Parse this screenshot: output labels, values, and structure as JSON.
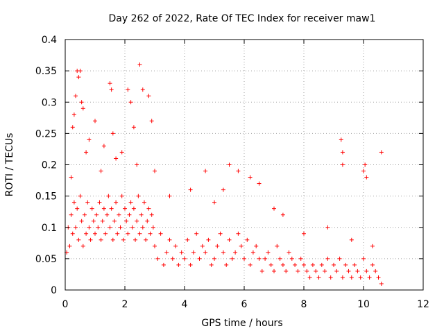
{
  "chart_data": {
    "type": "scatter",
    "title": "Day 262 of 2022, Rate Of TEC Index for receiver maw1",
    "xlabel": "GPS time / hours",
    "ylabel": "ROTI / TECUs",
    "xlim": [
      0,
      12
    ],
    "ylim": [
      0,
      0.4
    ],
    "x_ticks": [
      "0",
      "2",
      "4",
      "6",
      "8",
      "10",
      "12"
    ],
    "y_ticks": [
      "0",
      "0.05",
      "0.1",
      "0.15",
      "0.2",
      "0.25",
      "0.3",
      "0.35",
      "0.4"
    ],
    "grid": true,
    "marker": "plus",
    "color": "#ff0000",
    "series": [
      {
        "x": [
          0.05,
          0.1,
          0.15,
          0.2,
          0.25,
          0.3,
          0.35,
          0.4,
          0.45,
          0.5,
          0.55,
          0.6,
          0.65,
          0.7,
          0.75,
          0.8,
          0.85,
          0.9,
          0.95,
          1.0,
          1.05,
          1.1,
          1.15,
          1.2,
          1.25,
          1.3,
          1.35,
          1.4,
          1.45,
          1.5,
          1.55,
          1.6,
          1.65,
          1.7,
          1.75,
          1.8,
          1.85,
          1.9,
          1.95,
          2.0,
          2.05,
          2.1,
          2.15,
          2.2,
          2.25,
          2.3,
          2.35,
          2.4,
          2.45,
          2.5,
          2.55,
          2.6,
          2.65,
          2.7,
          2.75,
          2.8,
          2.85,
          2.9,
          2.95,
          3.0,
          3.1,
          3.2,
          3.3,
          3.4,
          3.5,
          3.6,
          3.7,
          3.8,
          3.9,
          4.0,
          4.1,
          4.2,
          4.3,
          4.4,
          4.5,
          4.6,
          4.7,
          4.8,
          4.9,
          5.0,
          5.1,
          5.2,
          5.3,
          5.4,
          5.5,
          5.6,
          5.7,
          5.8,
          5.9,
          6.0,
          6.1,
          6.2,
          6.3,
          6.4,
          6.5,
          6.6,
          6.7,
          6.8,
          6.9,
          7.0,
          7.1,
          7.2,
          7.3,
          7.4,
          7.5,
          7.6,
          7.7,
          7.8,
          7.9,
          8.0,
          8.1,
          8.2,
          8.3,
          8.4,
          8.5,
          8.6,
          8.7,
          8.8,
          8.9,
          9.0,
          9.1,
          9.2,
          9.3,
          9.4,
          9.5,
          9.6,
          9.7,
          9.8,
          9.9,
          10.0,
          10.1,
          10.2,
          10.3,
          10.4,
          10.5,
          10.6,
          0.4,
          0.45,
          0.5,
          0.35,
          0.55,
          1.5,
          1.55,
          2.1,
          2.2,
          2.5,
          2.6,
          2.8,
          0.3,
          0.25,
          0.6,
          0.8,
          1.0,
          1.3,
          1.6,
          1.9,
          2.3,
          2.9,
          9.25,
          9.3,
          10.0,
          10.05,
          10.1,
          10.6,
          9.3,
          5.5,
          5.8,
          6.2,
          4.7,
          7.0,
          0.2,
          0.7,
          1.2,
          1.7,
          2.4,
          3.0,
          3.5,
          4.2,
          5.0,
          5.3,
          6.5,
          7.3,
          8.0,
          8.8,
          9.6,
          10.3
        ],
        "y": [
          0.06,
          0.1,
          0.07,
          0.12,
          0.09,
          0.14,
          0.1,
          0.13,
          0.08,
          0.15,
          0.11,
          0.07,
          0.12,
          0.09,
          0.14,
          0.1,
          0.08,
          0.13,
          0.11,
          0.09,
          0.12,
          0.1,
          0.14,
          0.08,
          0.11,
          0.13,
          0.09,
          0.12,
          0.15,
          0.1,
          0.13,
          0.08,
          0.11,
          0.14,
          0.09,
          0.12,
          0.1,
          0.15,
          0.08,
          0.13,
          0.11,
          0.09,
          0.12,
          0.14,
          0.1,
          0.13,
          0.08,
          0.11,
          0.15,
          0.09,
          0.12,
          0.1,
          0.14,
          0.08,
          0.11,
          0.13,
          0.09,
          0.12,
          0.1,
          0.07,
          0.05,
          0.09,
          0.04,
          0.06,
          0.08,
          0.05,
          0.07,
          0.04,
          0.06,
          0.05,
          0.08,
          0.04,
          0.06,
          0.09,
          0.05,
          0.07,
          0.06,
          0.08,
          0.04,
          0.05,
          0.07,
          0.09,
          0.06,
          0.04,
          0.08,
          0.05,
          0.06,
          0.09,
          0.07,
          0.05,
          0.08,
          0.04,
          0.06,
          0.07,
          0.05,
          0.03,
          0.05,
          0.06,
          0.04,
          0.03,
          0.07,
          0.05,
          0.04,
          0.03,
          0.06,
          0.05,
          0.04,
          0.03,
          0.05,
          0.04,
          0.03,
          0.02,
          0.04,
          0.03,
          0.02,
          0.04,
          0.03,
          0.05,
          0.02,
          0.04,
          0.03,
          0.05,
          0.02,
          0.04,
          0.03,
          0.02,
          0.04,
          0.03,
          0.02,
          0.05,
          0.03,
          0.02,
          0.04,
          0.03,
          0.02,
          0.01,
          0.35,
          0.34,
          0.35,
          0.31,
          0.3,
          0.33,
          0.32,
          0.32,
          0.3,
          0.36,
          0.32,
          0.31,
          0.28,
          0.26,
          0.29,
          0.24,
          0.27,
          0.23,
          0.25,
          0.22,
          0.26,
          0.27,
          0.24,
          0.22,
          0.19,
          0.2,
          0.18,
          0.22,
          0.2,
          0.2,
          0.19,
          0.18,
          0.19,
          0.13,
          0.18,
          0.22,
          0.19,
          0.21,
          0.2,
          0.19,
          0.15,
          0.16,
          0.14,
          0.16,
          0.17,
          0.12,
          0.09,
          0.1,
          0.08,
          0.07
        ]
      }
    ]
  }
}
